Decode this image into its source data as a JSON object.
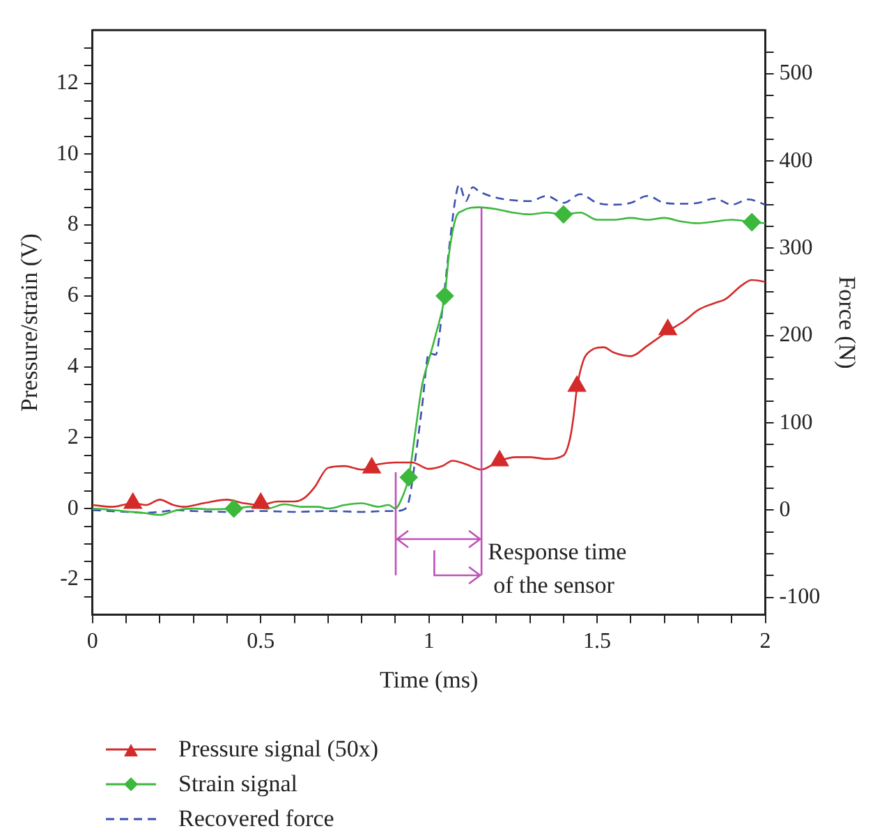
{
  "chart_data": {
    "type": "line",
    "xlabel": "Time (ms)",
    "ylabel": "Pressure/strain (V)",
    "y2label": "Force (N)",
    "xlim": [
      0,
      2
    ],
    "xticks": [
      0,
      {
        "value": 0.1,
        "label": null
      },
      {
        "value": 0.2,
        "label": null
      },
      {
        "value": 0.3,
        "label": null
      },
      {
        "value": 0.4,
        "label": null
      },
      0.5,
      {
        "value": 0.6,
        "label": null
      },
      {
        "value": 0.7,
        "label": null
      },
      {
        "value": 0.8,
        "label": null
      },
      {
        "value": 0.9,
        "label": null
      },
      1,
      {
        "value": 1.1,
        "label": null
      },
      {
        "value": 1.2,
        "label": null
      },
      {
        "value": 1.3,
        "label": null
      },
      {
        "value": 1.4,
        "label": null
      },
      1.5,
      {
        "value": 1.6,
        "label": null
      },
      {
        "value": 1.7,
        "label": null
      },
      {
        "value": 1.8,
        "label": null
      },
      {
        "value": 1.9,
        "label": null
      },
      2
    ],
    "ylim": [
      -3,
      13.5
    ],
    "yticks": [
      {
        "value": -2.5,
        "label": null
      },
      -2,
      {
        "value": -1.5,
        "label": null
      },
      {
        "value": -1,
        "label": null
      },
      {
        "value": -0.5,
        "label": null
      },
      0,
      {
        "value": 0.5,
        "label": null
      },
      {
        "value": 1,
        "label": null
      },
      {
        "value": 1.5,
        "label": null
      },
      2,
      {
        "value": 2.5,
        "label": null
      },
      {
        "value": 3,
        "label": null
      },
      {
        "value": 3.5,
        "label": null
      },
      4,
      {
        "value": 4.5,
        "label": null
      },
      {
        "value": 5,
        "label": null
      },
      {
        "value": 5.5,
        "label": null
      },
      6,
      {
        "value": 6.5,
        "label": null
      },
      {
        "value": 7,
        "label": null
      },
      {
        "value": 7.5,
        "label": null
      },
      8,
      {
        "value": 8.5,
        "label": null
      },
      {
        "value": 9,
        "label": null
      },
      {
        "value": 9.5,
        "label": null
      },
      10,
      {
        "value": 10.5,
        "label": null
      },
      {
        "value": 11,
        "label": null
      },
      {
        "value": 11.5,
        "label": null
      },
      12,
      {
        "value": 12.5,
        "label": null
      },
      {
        "value": 13,
        "label": null
      }
    ],
    "y2lim": [
      -120,
      550
    ],
    "y2ticks": [
      -100,
      {
        "value": -75,
        "label": null
      },
      {
        "value": -50,
        "label": null
      },
      {
        "value": -25,
        "label": null
      },
      0,
      {
        "value": 25,
        "label": null
      },
      {
        "value": 50,
        "label": null
      },
      {
        "value": 75,
        "label": null
      },
      100,
      {
        "value": 125,
        "label": null
      },
      {
        "value": 150,
        "label": null
      },
      {
        "value": 175,
        "label": null
      },
      200,
      {
        "value": 225,
        "label": null
      },
      {
        "value": 250,
        "label": null
      },
      {
        "value": 275,
        "label": null
      },
      300,
      {
        "value": 325,
        "label": null
      },
      {
        "value": 350,
        "label": null
      },
      {
        "value": 375,
        "label": null
      },
      400,
      {
        "value": 425,
        "label": null
      },
      {
        "value": 450,
        "label": null
      },
      {
        "value": 475,
        "label": null
      },
      500,
      {
        "value": 525,
        "label": null
      }
    ],
    "grid": false,
    "legend": "bottom",
    "series": [
      {
        "name": "Pressure signal (50x)",
        "color": "#d42a2a",
        "x": [
          0,
          0.06,
          0.12,
          0.16,
          0.2,
          0.24,
          0.27,
          0.33,
          0.4,
          0.45,
          0.5,
          0.55,
          0.6,
          0.63,
          0.66,
          0.7,
          0.75,
          0.8,
          0.85,
          0.9,
          0.95,
          1.0,
          1.04,
          1.07,
          1.11,
          1.155,
          1.21,
          1.26,
          1.3,
          1.35,
          1.4,
          1.42,
          1.43,
          1.44,
          1.46,
          1.48,
          1.52,
          1.55,
          1.6,
          1.65,
          1.71,
          1.76,
          1.8,
          1.85,
          1.88,
          1.93,
          1.96,
          2.0
        ],
        "values": [
          0.1,
          0.05,
          0.15,
          0.1,
          0.25,
          0.1,
          0.05,
          0.15,
          0.25,
          0.15,
          0.1,
          0.2,
          0.2,
          0.3,
          0.6,
          1.15,
          1.2,
          1.1,
          1.25,
          1.3,
          1.3,
          1.12,
          1.2,
          1.35,
          1.25,
          1.1,
          1.35,
          1.45,
          1.45,
          1.4,
          1.5,
          2.0,
          2.6,
          3.4,
          4.2,
          4.45,
          4.55,
          4.4,
          4.3,
          4.6,
          5.0,
          5.3,
          5.6,
          5.8,
          5.9,
          6.3,
          6.45,
          6.4
        ]
      },
      {
        "type": "scatter",
        "color": "#d42a2a",
        "marker": "triangle",
        "x": [
          0.12,
          0.5,
          0.83,
          1.21,
          1.44,
          1.71
        ],
        "values": [
          0.15,
          0.15,
          1.15,
          1.35,
          3.45,
          5.05
        ]
      },
      {
        "name": "Strain signal",
        "color": "#3cb83c",
        "x": [
          0,
          0.05,
          0.1,
          0.15,
          0.2,
          0.25,
          0.3,
          0.35,
          0.42,
          0.47,
          0.52,
          0.57,
          0.62,
          0.67,
          0.7,
          0.75,
          0.8,
          0.85,
          0.88,
          0.9,
          0.92,
          0.94,
          0.96,
          0.98,
          1.0,
          1.02,
          1.047,
          1.06,
          1.08,
          1.1,
          1.15,
          1.2,
          1.25,
          1.3,
          1.35,
          1.4,
          1.45,
          1.5,
          1.55,
          1.6,
          1.65,
          1.7,
          1.75,
          1.8,
          1.85,
          1.9,
          1.96,
          2.0
        ],
        "values": [
          0.0,
          -0.03,
          -0.08,
          -0.12,
          -0.18,
          -0.05,
          0.0,
          -0.02,
          0.0,
          0.05,
          0.0,
          0.12,
          0.05,
          0.05,
          0.0,
          0.1,
          0.15,
          0.05,
          0.1,
          0.0,
          0.3,
          0.88,
          2.2,
          3.5,
          4.2,
          4.9,
          6.0,
          7.2,
          8.2,
          8.4,
          8.5,
          8.45,
          8.35,
          8.3,
          8.35,
          8.3,
          8.35,
          8.15,
          8.15,
          8.2,
          8.15,
          8.2,
          8.1,
          8.05,
          8.1,
          8.15,
          8.08,
          8.05
        ]
      },
      {
        "type": "scatter",
        "color": "#3cb83c",
        "marker": "diamond",
        "x": [
          0.42,
          0.94,
          1.047,
          1.4,
          1.96
        ],
        "values": [
          0.0,
          0.88,
          6.0,
          8.3,
          8.08
        ]
      },
      {
        "name": "Recovered force",
        "color": "#3a4fb0",
        "line_style": "dashed",
        "axis": "y2",
        "x": [
          0,
          0.05,
          0.1,
          0.15,
          0.2,
          0.25,
          0.3,
          0.4,
          0.5,
          0.6,
          0.7,
          0.8,
          0.88,
          0.9,
          0.92,
          0.94,
          0.96,
          0.98,
          1.0,
          1.02,
          1.04,
          1.06,
          1.08,
          1.09,
          1.11,
          1.13,
          1.15,
          1.2,
          1.25,
          1.3,
          1.35,
          1.4,
          1.45,
          1.5,
          1.55,
          1.6,
          1.65,
          1.7,
          1.75,
          1.8,
          1.85,
          1.9,
          1.95,
          2.0
        ],
        "values": [
          0,
          -1,
          -2,
          -3,
          -2,
          0,
          -1,
          -2,
          -1,
          -2,
          -1,
          -2,
          -1,
          -1,
          0,
          10,
          60,
          120,
          180,
          178,
          230,
          300,
          360,
          373,
          354,
          370,
          365,
          358,
          355,
          354,
          360,
          352,
          362,
          352,
          350,
          352,
          360,
          352,
          351,
          352,
          357,
          350,
          356,
          350
        ]
      }
    ],
    "annotations": [
      "Response time of the sensor"
    ]
  }
}
